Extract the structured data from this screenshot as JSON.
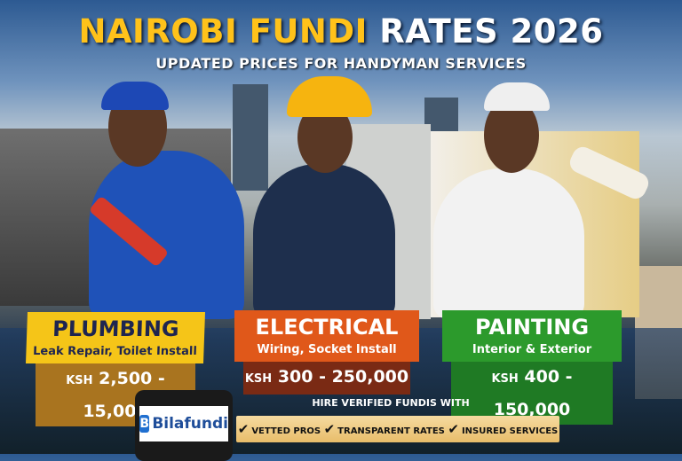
{
  "header": {
    "title_highlight": "NAIROBI FUNDI",
    "title_rest": "RATES 2026",
    "subtitle": "UPDATED PRICES FOR HANDYMAN SERVICES"
  },
  "services": [
    {
      "name": "PLUMBING",
      "desc": "Leak Repair, Toilet Install",
      "currency": "KSH",
      "range": "2,500 - 15,000",
      "color": "#f5c518",
      "price_color": "#a9741f"
    },
    {
      "name": "ELECTRICAL",
      "desc": "Wiring, Socket Install",
      "currency": "KSH",
      "range": "300 - 250,000",
      "color": "#e0581a",
      "price_color": "#7a2a14"
    },
    {
      "name": "PAINTING",
      "desc": "Interior & Exterior",
      "currency": "KSH",
      "range": "400 - 150,000",
      "color": "#2c9a2c",
      "price_color": "#1f7a24"
    }
  ],
  "cta": {
    "heading": "HIRE VERIFIED FUNDIS WITH",
    "features": [
      "VETTED PROS",
      "TRANSPARENT RATES",
      "INSURED SERVICES"
    ],
    "check": "✔"
  },
  "app": {
    "brand": "Bilafundi",
    "mark": "B"
  }
}
